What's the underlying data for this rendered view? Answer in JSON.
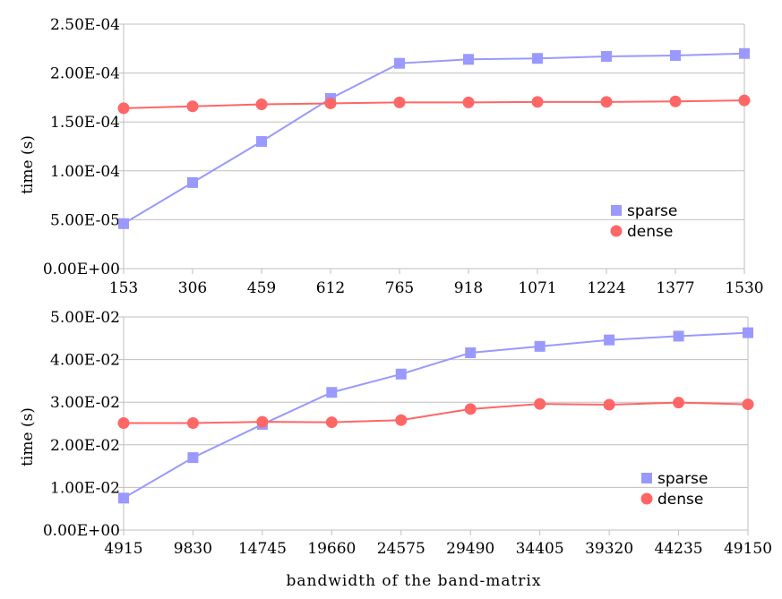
{
  "chart_data": [
    {
      "type": "line",
      "categories": [
        "153",
        "306",
        "459",
        "612",
        "765",
        "918",
        "1071",
        "1224",
        "1377",
        "1530"
      ],
      "series": [
        {
          "name": "sparse",
          "color": "#9999ff",
          "marker": "square",
          "values": [
            4.6e-05,
            8.8e-05,
            0.00013,
            0.000174,
            0.00021,
            0.000214,
            0.000215,
            0.000217,
            0.000218,
            0.00022
          ]
        },
        {
          "name": "dense",
          "color": "#ff6666",
          "marker": "circle",
          "values": [
            0.000164,
            0.000166,
            0.000168,
            0.000169,
            0.00017,
            0.00017,
            0.0001705,
            0.0001705,
            0.000171,
            0.000172
          ]
        }
      ],
      "ylabel": "time (s)",
      "xlabel": "",
      "ylim": [
        0,
        0.00025
      ],
      "yticks": [
        "0.00E+00",
        "5.00E-05",
        "1.00E-04",
        "1.50E-04",
        "2.00E-04",
        "2.50E-04"
      ],
      "grid": "horizontal",
      "legend": "right"
    },
    {
      "type": "line",
      "categories": [
        "4915",
        "9830",
        "14745",
        "19660",
        "24575",
        "29490",
        "34405",
        "39320",
        "44235",
        "49150"
      ],
      "series": [
        {
          "name": "sparse",
          "color": "#9999ff",
          "marker": "square",
          "values": [
            0.0075,
            0.017,
            0.0248,
            0.0323,
            0.0366,
            0.0416,
            0.0431,
            0.0446,
            0.0455,
            0.0463
          ]
        },
        {
          "name": "dense",
          "color": "#ff6666",
          "marker": "circle",
          "values": [
            0.0251,
            0.0251,
            0.0254,
            0.0253,
            0.0258,
            0.0284,
            0.0296,
            0.0294,
            0.0299,
            0.0295
          ]
        }
      ],
      "ylabel": "time (s)",
      "xlabel": "bandwidth of the band-matrix",
      "ylim": [
        0,
        0.05
      ],
      "yticks": [
        "0.00E+00",
        "1.00E-02",
        "2.00E-02",
        "3.00E-02",
        "4.00E-02",
        "5.00E-02"
      ],
      "grid": "horizontal",
      "legend": "right"
    }
  ],
  "colors": {
    "axis": "#bfbfbf",
    "grid": "#bfbfbf",
    "sparse": "#9999ff",
    "dense": "#ff6666"
  }
}
